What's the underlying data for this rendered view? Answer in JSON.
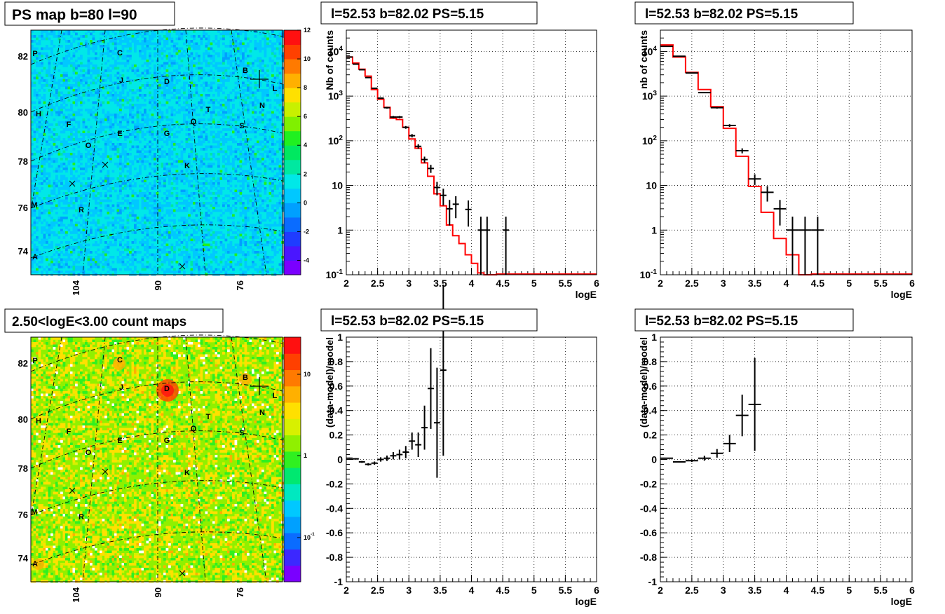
{
  "maps": [
    {
      "title": "PS map b=80 l=90",
      "colorbar": {
        "scale": "linear",
        "range": [
          -5,
          12
        ],
        "ticks": [
          "12",
          "10",
          "8",
          "6",
          "4",
          "2",
          "0",
          "-2",
          "-4"
        ],
        "tick_values": [
          12,
          10,
          8,
          6,
          4,
          2,
          0,
          -2,
          -4
        ],
        "colors": [
          "#7a00ff",
          "#4a16ff",
          "#1f3cff",
          "#0a6cff",
          "#00a0ff",
          "#00c8ff",
          "#00e8e8",
          "#00e8a0",
          "#00e860",
          "#20f020",
          "#80f000",
          "#c8f000",
          "#ffe000",
          "#ffb000",
          "#ff7a00",
          "#ff4000",
          "#ff1010"
        ]
      },
      "x_ticks": [
        "104",
        "90",
        "76"
      ],
      "y_ticks": [
        "82",
        "80",
        "78",
        "76",
        "74"
      ],
      "style": "ps",
      "source_labels": [
        "P",
        "C",
        "B",
        "J",
        "D",
        "L",
        "N",
        "H",
        "T",
        "F",
        "Q",
        "S",
        "E",
        "G",
        "O",
        "K",
        "M",
        "R",
        "A"
      ]
    },
    {
      "title": "2.50<logE<3.00 count maps",
      "colorbar": {
        "scale": "log",
        "ticks": [
          "10",
          "1",
          "10^-1"
        ],
        "colors": [
          "#7a00ff",
          "#3c28ff",
          "#0a6cff",
          "#00a0ff",
          "#00c8ff",
          "#00e8c0",
          "#00e870",
          "#30f020",
          "#90f000",
          "#d8f000",
          "#ffe000",
          "#ffb000",
          "#ff7a00",
          "#ff4000",
          "#ff1010"
        ]
      },
      "x_ticks": [
        "104",
        "90",
        "76"
      ],
      "y_ticks": [
        "82",
        "80",
        "78",
        "76",
        "74"
      ],
      "style": "count",
      "source_labels": [
        "P",
        "C",
        "B",
        "J",
        "D",
        "L",
        "N",
        "H",
        "T",
        "F",
        "Q",
        "S",
        "E",
        "G",
        "O",
        "K",
        "M",
        "R",
        "A"
      ]
    }
  ],
  "chart_data": [
    {
      "type": "histogram",
      "title": "l=52.53 b=82.02 PS=5.15",
      "xlabel": "logE",
      "ylabel": "Nb of counts",
      "xlim": [
        2,
        6
      ],
      "ylim": [
        0.1,
        30000
      ],
      "yscale": "log",
      "grid": true,
      "x_ticks": [
        "2",
        "2.5",
        "3",
        "3.5",
        "4",
        "4.5",
        "5",
        "5.5",
        "6"
      ],
      "y_ticks": [
        "10^4",
        "10^3",
        "10^2",
        "10",
        "1",
        "10^-1"
      ],
      "data": {
        "x": [
          2.05,
          2.15,
          2.25,
          2.35,
          2.45,
          2.55,
          2.65,
          2.75,
          2.85,
          2.95,
          3.05,
          3.15,
          3.25,
          3.35,
          3.45,
          3.55,
          3.65,
          3.75,
          3.85,
          3.95,
          4.05,
          4.15,
          4.25,
          4.35,
          4.45,
          4.55
        ],
        "y": [
          7500,
          5200,
          3900,
          2600,
          1500,
          900,
          550,
          340,
          340,
          200,
          130,
          75,
          38,
          24,
          9,
          6,
          3,
          3.8,
          0,
          2.9,
          0,
          1,
          1,
          0,
          0,
          1
        ]
      },
      "model": {
        "x": [
          2.0,
          2.1,
          2.2,
          2.3,
          2.4,
          2.5,
          2.6,
          2.7,
          2.8,
          2.9,
          3.0,
          3.1,
          3.2,
          3.3,
          3.4,
          3.5,
          3.6,
          3.7,
          3.8,
          3.9,
          4.0,
          4.1,
          4.2,
          4.3
        ],
        "y": [
          7500,
          5500,
          4000,
          2800,
          1400,
          850,
          560,
          320,
          300,
          200,
          110,
          68,
          32,
          16,
          6.5,
          3.5,
          1.3,
          0.75,
          0.5,
          0.28,
          0.18,
          0.11,
          0.06,
          0.06
        ]
      }
    },
    {
      "type": "histogram",
      "title": "l=52.53 b=82.02 PS=5.15",
      "xlabel": "logE",
      "ylabel": "nb of counts",
      "xlim": [
        2,
        6
      ],
      "ylim": [
        0.1,
        30000
      ],
      "yscale": "log",
      "grid": true,
      "x_ticks": [
        "2",
        "2.5",
        "3",
        "3.5",
        "4",
        "4.5",
        "5",
        "5.5",
        "6"
      ],
      "y_ticks": [
        "10^4",
        "10^3",
        "10^2",
        "10",
        "1",
        "10^-1"
      ],
      "data": {
        "x": [
          2.1,
          2.3,
          2.5,
          2.7,
          2.9,
          3.1,
          3.3,
          3.5,
          3.7,
          3.9,
          4.1,
          4.3,
          4.5
        ],
        "y": [
          13000,
          7800,
          3300,
          1200,
          550,
          220,
          60,
          14,
          7,
          3,
          1,
          1,
          1
        ]
      },
      "model": {
        "x": [
          2.0,
          2.2,
          2.4,
          2.6,
          2.8,
          3.0,
          3.2,
          3.4,
          3.6,
          3.8,
          4.0,
          4.2
        ],
        "y": [
          14000,
          7500,
          3400,
          1400,
          580,
          190,
          45,
          9.5,
          2.5,
          0.65,
          0.28,
          0.06
        ]
      }
    },
    {
      "type": "scatter",
      "title": "l=52.53 b=82.02 PS=5.15",
      "xlabel": "logE",
      "ylabel": "(data-model)/model",
      "xlim": [
        2,
        6
      ],
      "ylim": [
        -1,
        1
      ],
      "grid": true,
      "x_ticks": [
        "2",
        "2.5",
        "3",
        "3.5",
        "4",
        "4.5",
        "5",
        "5.5",
        "6"
      ],
      "y_ticks": [
        "1",
        "0.8",
        "0.6",
        "0.4",
        "0.2",
        "0",
        "-0.2",
        "-0.4",
        "-0.6",
        "-0.8",
        "-1"
      ],
      "data": {
        "x": [
          2.05,
          2.15,
          2.25,
          2.35,
          2.45,
          2.55,
          2.65,
          2.75,
          2.85,
          2.95,
          3.05,
          3.15,
          3.25,
          3.35,
          3.45,
          3.55
        ],
        "y": [
          0.01,
          0.005,
          -0.02,
          -0.04,
          -0.03,
          0.0,
          0.01,
          0.03,
          0.04,
          0.06,
          0.15,
          0.12,
          0.26,
          0.58,
          0.3,
          0.73
        ],
        "err": [
          0.005,
          0.006,
          0.008,
          0.01,
          0.013,
          0.018,
          0.022,
          0.03,
          0.04,
          0.05,
          0.07,
          0.1,
          0.18,
          0.33,
          0.45,
          0.7
        ]
      }
    },
    {
      "type": "scatter",
      "title": "l=52.53 b=82.02 PS=5.15",
      "xlabel": "logE",
      "ylabel": "(data-model)/model",
      "xlim": [
        2,
        6
      ],
      "ylim": [
        -1,
        1
      ],
      "grid": true,
      "x_ticks": [
        "2",
        "2.5",
        "3",
        "3.5",
        "4",
        "4.5",
        "5",
        "5.5",
        "6"
      ],
      "y_ticks": [
        "1",
        "0.8",
        "0.6",
        "0.4",
        "0.2",
        "0",
        "-0.2",
        "-0.4",
        "-0.6",
        "-0.8",
        "-1"
      ],
      "data": {
        "x": [
          2.1,
          2.3,
          2.5,
          2.7,
          2.9,
          3.1,
          3.3,
          3.5
        ],
        "y": [
          0.01,
          -0.02,
          -0.01,
          0.01,
          0.05,
          0.13,
          0.36,
          0.45
        ],
        "err": [
          0.004,
          0.006,
          0.01,
          0.02,
          0.035,
          0.07,
          0.17,
          0.38
        ]
      }
    }
  ]
}
